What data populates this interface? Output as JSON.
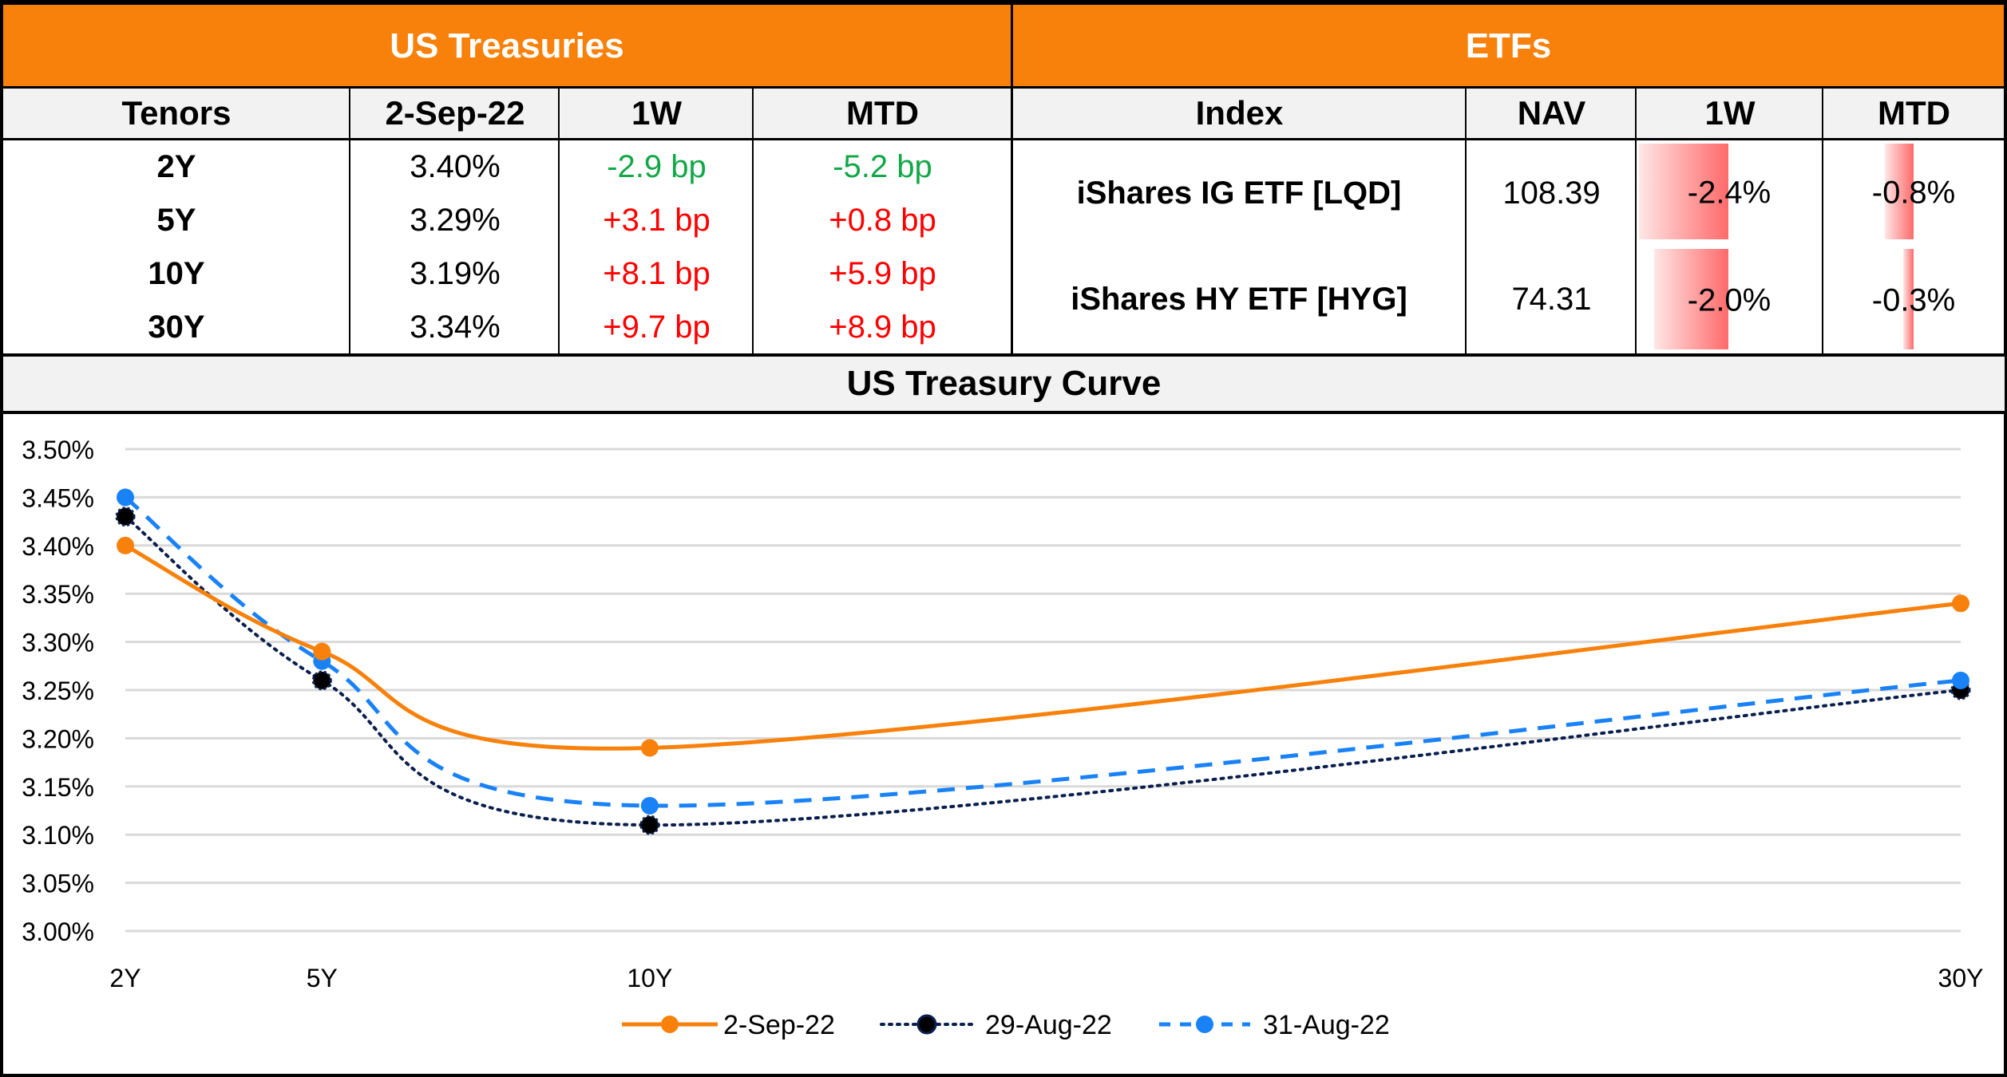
{
  "treasuries": {
    "title": "US Treasuries",
    "headers": [
      "Tenors",
      "2-Sep-22",
      "1W",
      "MTD"
    ],
    "rows": [
      {
        "tenor": "2Y",
        "yield": "3.40%",
        "w1": "-2.9 bp",
        "mtd": "-5.2 bp",
        "w1_dir": "down",
        "mtd_dir": "down"
      },
      {
        "tenor": "5Y",
        "yield": "3.29%",
        "w1": "+3.1 bp",
        "mtd": "+0.8 bp",
        "w1_dir": "up",
        "mtd_dir": "up"
      },
      {
        "tenor": "10Y",
        "yield": "3.19%",
        "w1": "+8.1 bp",
        "mtd": "+5.9 bp",
        "w1_dir": "up",
        "mtd_dir": "up"
      },
      {
        "tenor": "30Y",
        "yield": "3.34%",
        "w1": "+9.7 bp",
        "mtd": "+8.9 bp",
        "w1_dir": "up",
        "mtd_dir": "up"
      }
    ]
  },
  "etfs": {
    "title": "ETFs",
    "headers": [
      "Index",
      "NAV",
      "1W",
      "MTD"
    ],
    "rows": [
      {
        "name": "iShares IG ETF [LQD]",
        "nav": "108.39",
        "w1": "-2.4%",
        "mtd": "-0.8%",
        "w1_value": -2.4,
        "mtd_value": -0.8
      },
      {
        "name": "iShares HY ETF [HYG]",
        "nav": "74.31",
        "w1": "-2.0%",
        "mtd": "-0.3%",
        "w1_value": -2.0,
        "mtd_value": -0.3
      }
    ]
  },
  "colors": {
    "header_orange": "#f7810b",
    "positive_change": "#ff0000",
    "negative_change": "#12a847",
    "bar_red": "#ff6a6a"
  },
  "chart_data": {
    "type": "line",
    "title": "US Treasury Curve",
    "xlabel": "",
    "ylabel": "",
    "categories": [
      "2Y",
      "5Y",
      "10Y",
      "30Y"
    ],
    "x_years": [
      2,
      5,
      10,
      30
    ],
    "ylim": [
      3.0,
      3.5
    ],
    "y_ticks": [
      "3.50%",
      "3.45%",
      "3.40%",
      "3.35%",
      "3.30%",
      "3.25%",
      "3.20%",
      "3.15%",
      "3.10%",
      "3.05%",
      "3.00%"
    ],
    "y_tick_values": [
      3.5,
      3.45,
      3.4,
      3.35,
      3.3,
      3.25,
      3.2,
      3.15,
      3.1,
      3.05,
      3.0
    ],
    "grid": true,
    "smooth": true,
    "legend_position": "bottom",
    "series": [
      {
        "name": "2-Sep-22",
        "values": [
          3.4,
          3.29,
          3.19,
          3.34
        ],
        "color": "#f7810b",
        "style": "solid"
      },
      {
        "name": "29-Aug-22",
        "values": [
          3.43,
          3.26,
          3.11,
          3.25
        ],
        "color": "#0a1f4d",
        "style": "dotted"
      },
      {
        "name": "31-Aug-22",
        "values": [
          3.45,
          3.28,
          3.13,
          3.26
        ],
        "color": "#1a82f7",
        "style": "dashed"
      }
    ]
  }
}
